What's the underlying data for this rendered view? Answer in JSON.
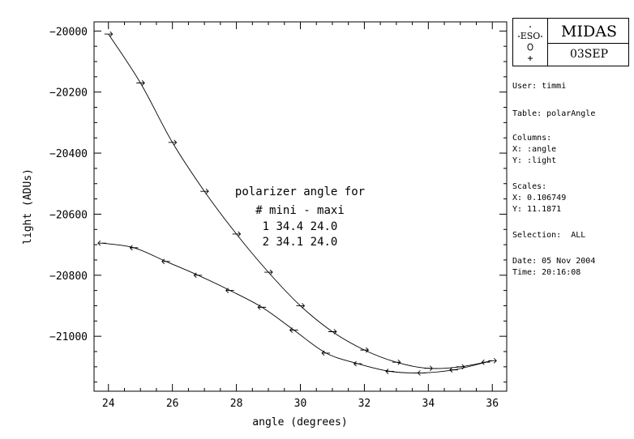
{
  "logo": {
    "title": "MIDAS",
    "subtitle": "03SEP",
    "mark_text": "ESO"
  },
  "info": {
    "user": "User: timmi",
    "table": "Table: polarAngle",
    "columns_label": "Columns:",
    "col_x": "X: :angle",
    "col_y": "Y: :light",
    "scales_label": "Scales:",
    "scale_x": "X: 0.106749",
    "scale_y": "Y: 11.1871",
    "selection": "Selection:  ALL",
    "date": "Date: 05 Nov 2004",
    "time": "Time: 20:16:08"
  },
  "chart_data": {
    "type": "scatter",
    "title": "",
    "xlabel": "angle (degrees)",
    "ylabel": "light (ADUs)",
    "xlim": [
      23.55,
      36.45
    ],
    "ylim": [
      -21180,
      -19970
    ],
    "xticks": [
      24,
      26,
      28,
      30,
      32,
      34,
      36
    ],
    "yticks": [
      -20000,
      -20200,
      -20400,
      -20600,
      -20800,
      -21000
    ],
    "annotation": [
      "polarizer angle for",
      "# mini - maxi",
      "1 34.4 24.0",
      "2 34.1 24.0"
    ],
    "series": [
      {
        "name": "1",
        "marker": "right-arrow",
        "x": [
          24.0,
          25.0,
          26.0,
          27.0,
          28.0,
          29.0,
          30.0,
          31.0,
          32.0,
          33.0,
          34.0,
          35.0,
          36.0
        ],
        "y": [
          -20010,
          -20170,
          -20365,
          -20525,
          -20665,
          -20790,
          -20900,
          -20985,
          -21045,
          -21085,
          -21105,
          -21100,
          -21080
        ]
      },
      {
        "name": "2",
        "marker": "left-arrow",
        "x": [
          23.8,
          24.8,
          25.8,
          26.8,
          27.8,
          28.8,
          29.8,
          30.8,
          31.8,
          32.8,
          33.8,
          34.8,
          35.8
        ],
        "y": [
          -20695,
          -20710,
          -20755,
          -20800,
          -20850,
          -20905,
          -20980,
          -21055,
          -21090,
          -21115,
          -21120,
          -21110,
          -21085
        ]
      }
    ]
  }
}
